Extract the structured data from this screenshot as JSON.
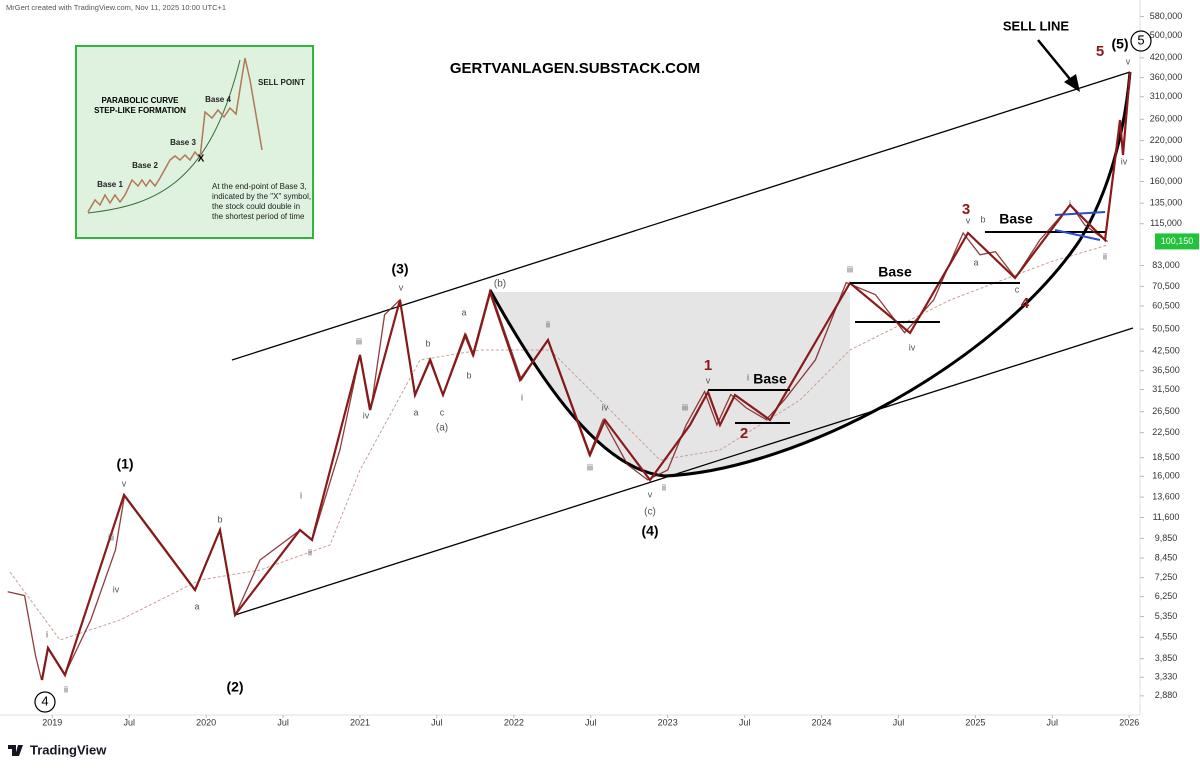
{
  "chart_data": {
    "type": "line",
    "credit": "MrGert created with TradingView.com, Nov 11, 2025 10:00 UTC+1",
    "watermark": "GERTVANLAGEN.SUBSTACK.COM",
    "sell_line_label": "SELL LINE",
    "footer": "TradingView",
    "log_scale": true,
    "grid": false,
    "color": "#7a1c1c",
    "x": [
      2018.71,
      2018.82,
      2018.89,
      2018.93,
      2018.97,
      2019.08,
      2019.25,
      2019.41,
      2019.47,
      2019.64,
      2019.93,
      2020.09,
      2020.19,
      2020.35,
      2020.61,
      2020.69,
      2020.87,
      2021.0,
      2021.07,
      2021.16,
      2021.26,
      2021.36,
      2021.46,
      2021.54,
      2021.69,
      2021.74,
      2021.85,
      2022.05,
      2022.22,
      2022.49,
      2022.58,
      2022.74,
      2022.87,
      2023.0,
      2023.12,
      2023.24,
      2023.32,
      2023.41,
      2023.51,
      2023.64,
      2023.76,
      2023.96,
      2024.16,
      2024.35,
      2024.54,
      2024.73,
      2024.92,
      2025.03,
      2025.13,
      2025.26,
      2025.42,
      2025.62,
      2025.71,
      2025.84,
      2025.86
    ],
    "values": [
      6490,
      6300,
      3960,
      3260,
      4190,
      3390,
      5210,
      8990,
      13800,
      10530,
      6590,
      10500,
      5420,
      8320,
      10500,
      9730,
      19700,
      41300,
      26900,
      56500,
      63500,
      30200,
      39700,
      30200,
      48300,
      41300,
      67600,
      34000,
      46400,
      18900,
      24900,
      17500,
      15560,
      16800,
      23900,
      31000,
      23900,
      30300,
      27300,
      24900,
      29100,
      39700,
      72600,
      66100,
      49100,
      63500,
      107000,
      90200,
      92400,
      75400,
      101400,
      133300,
      114000,
      101400,
      100150
    ],
    "xlim": [
      2018.66,
      2026.07
    ],
    "ylim": [
      2480,
      620000
    ],
    "xticks": [
      {
        "value": 2019,
        "label": "2019"
      },
      {
        "value": 2019.5,
        "label": "Jul"
      },
      {
        "value": 2020,
        "label": "2020"
      },
      {
        "value": 2020.5,
        "label": "Jul"
      },
      {
        "value": 2021,
        "label": "2021"
      },
      {
        "value": 2021.5,
        "label": "Jul"
      },
      {
        "value": 2022,
        "label": "2022"
      },
      {
        "value": 2022.5,
        "label": "Jul"
      },
      {
        "value": 2023,
        "label": "2023"
      },
      {
        "value": 2023.5,
        "label": "Jul"
      },
      {
        "value": 2024,
        "label": "2024"
      },
      {
        "value": 2024.5,
        "label": "Jul"
      },
      {
        "value": 2025,
        "label": "2025"
      },
      {
        "value": 2025.5,
        "label": "Jul"
      },
      {
        "value": 2026,
        "label": "2026"
      }
    ],
    "yticks": [
      {
        "value": 2880,
        "label": "2,880"
      },
      {
        "value": 3330,
        "label": "3,330"
      },
      {
        "value": 3850,
        "label": "3,850"
      },
      {
        "value": 4550,
        "label": "4,550"
      },
      {
        "value": 5350,
        "label": "5,350"
      },
      {
        "value": 6250,
        "label": "6,250"
      },
      {
        "value": 7250,
        "label": "7,250"
      },
      {
        "value": 8450,
        "label": "8,450"
      },
      {
        "value": 9850,
        "label": "9,850"
      },
      {
        "value": 11600,
        "label": "11,600"
      },
      {
        "value": 13600,
        "label": "13,600"
      },
      {
        "value": 16000,
        "label": "16,000"
      },
      {
        "value": 18500,
        "label": "18,500"
      },
      {
        "value": 22500,
        "label": "22,500"
      },
      {
        "value": 26500,
        "label": "26,500"
      },
      {
        "value": 31500,
        "label": "31,500"
      },
      {
        "value": 36500,
        "label": "36,500"
      },
      {
        "value": 42500,
        "label": "42,500"
      },
      {
        "value": 50500,
        "label": "50,500"
      },
      {
        "value": 60500,
        "label": "60,500"
      },
      {
        "value": 70500,
        "label": "70,500"
      },
      {
        "value": 83000,
        "label": "83,000"
      },
      {
        "value": 115000,
        "label": "115,000"
      },
      {
        "value": 135000,
        "label": "135,000"
      },
      {
        "value": 160000,
        "label": "160,000"
      },
      {
        "value": 190000,
        "label": "190,000"
      },
      {
        "value": 220000,
        "label": "220,000"
      },
      {
        "value": 260000,
        "label": "260,000"
      },
      {
        "value": 310000,
        "label": "310,000"
      },
      {
        "value": 360000,
        "label": "360,000"
      },
      {
        "value": 420000,
        "label": "420,000"
      },
      {
        "value": 500000,
        "label": "500,000"
      },
      {
        "value": 580000,
        "label": "580,000"
      }
    ],
    "last_price": {
      "value": 100150,
      "label": "100,150"
    },
    "annotations": [
      "(1)",
      "(2)",
      "(3)",
      "(4)",
      "(5)",
      "(a)",
      "(b)",
      "(c)",
      "4",
      "5",
      "1",
      "2",
      "3",
      "4",
      "5",
      "Base",
      "Base",
      "Base",
      "i",
      "ii",
      "iii",
      "iv",
      "v",
      "a",
      "b",
      "i",
      "ii",
      "iii",
      "iv",
      "v",
      "a",
      "b",
      "c",
      "a",
      "b",
      "i",
      "ii",
      "iii",
      "iv",
      "v",
      "ii",
      "iii",
      "v",
      "i",
      "iii",
      "iv",
      "v",
      "a",
      "b",
      "c",
      "i",
      "ii",
      "iv",
      "v"
    ],
    "inset": {
      "title": [
        "PARABOLIC CURVE",
        "STEP-LIKE FORMATION"
      ],
      "bases": [
        "Base 1",
        "Base 2",
        "Base 3",
        "Base 4"
      ],
      "sell_point": "SELL POINT",
      "marker": "X",
      "note": [
        "At the end-point of Base 3,",
        "indicated by the \"X\" symbol,",
        "the stock could double in",
        "the shortest period of time"
      ]
    }
  }
}
